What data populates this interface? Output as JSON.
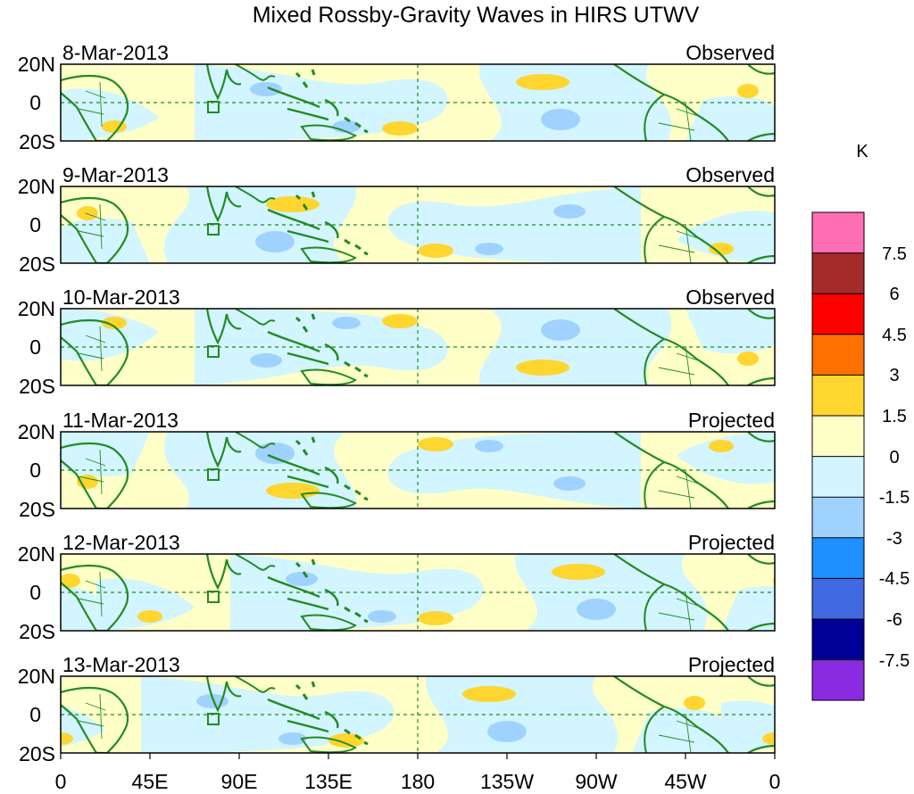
{
  "title": "Mixed Rossby-Gravity Waves in HIRS UTWV",
  "panels": [
    {
      "date": "8-Mar-2013",
      "status": "Observed"
    },
    {
      "date": "9-Mar-2013",
      "status": "Observed"
    },
    {
      "date": "10-Mar-2013",
      "status": "Observed"
    },
    {
      "date": "11-Mar-2013",
      "status": "Projected"
    },
    {
      "date": "12-Mar-2013",
      "status": "Projected"
    },
    {
      "date": "13-Mar-2013",
      "status": "Projected"
    }
  ],
  "lat_labels": [
    "20N",
    "0",
    "20S"
  ],
  "lon_labels": [
    "0",
    "45E",
    "90E",
    "135E",
    "180",
    "135W",
    "90W",
    "45W",
    "0"
  ],
  "colorbar": {
    "unit": "K",
    "labels": [
      "7.5",
      "6",
      "4.5",
      "3",
      "1.5",
      "0",
      "-1.5",
      "-3",
      "-4.5",
      "-6",
      "-7.5"
    ],
    "colors": [
      "#ff6eb4",
      "#a52a2a",
      "#ff0000",
      "#ff7000",
      "#ffd530",
      "#ffffc8",
      "#d2f5ff",
      "#a0d2ff",
      "#1e90ff",
      "#4169e1",
      "#000096",
      "#8a2be2"
    ]
  },
  "colors": {
    "land": "#228b22",
    "box": "#228b22",
    "ref_line": "#228b22"
  }
}
